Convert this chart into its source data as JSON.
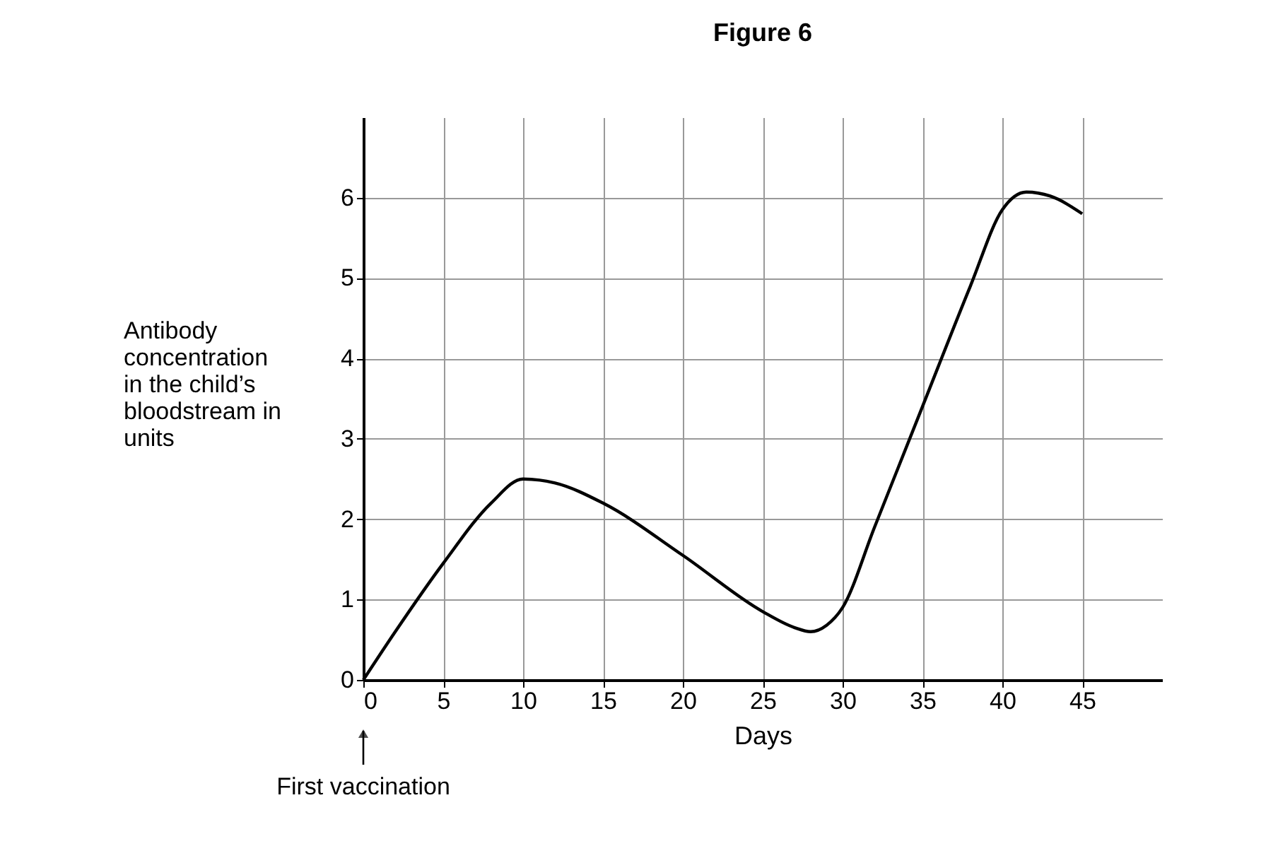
{
  "chart_data": {
    "type": "line",
    "title": "Figure 6",
    "xlabel": "Days",
    "ylabel": "Antibody concentration in the child’s bloodstream in units",
    "x": [
      0,
      2,
      5,
      8,
      10,
      12,
      15,
      20,
      25,
      27,
      28,
      29,
      30,
      32,
      35,
      38,
      40,
      41.5,
      43,
      45
    ],
    "series": [
      {
        "color": "#000000",
        "values": [
          0,
          0.6,
          1.45,
          2.2,
          2.5,
          2.45,
          2.2,
          1.55,
          0.85,
          0.65,
          0.6,
          0.68,
          0.9,
          1.9,
          3.4,
          4.9,
          5.85,
          6.07,
          6.02,
          5.8
        ]
      }
    ],
    "xlim": [
      0,
      50
    ],
    "ylim": [
      0,
      7
    ],
    "xticks": [
      0,
      5,
      10,
      15,
      20,
      25,
      30,
      35,
      40,
      45
    ],
    "yticks": [
      0,
      1,
      2,
      3,
      4,
      5,
      6
    ],
    "grid": true,
    "marker": "none",
    "line_style": "solid",
    "annotations": [
      "First vaccination"
    ]
  }
}
